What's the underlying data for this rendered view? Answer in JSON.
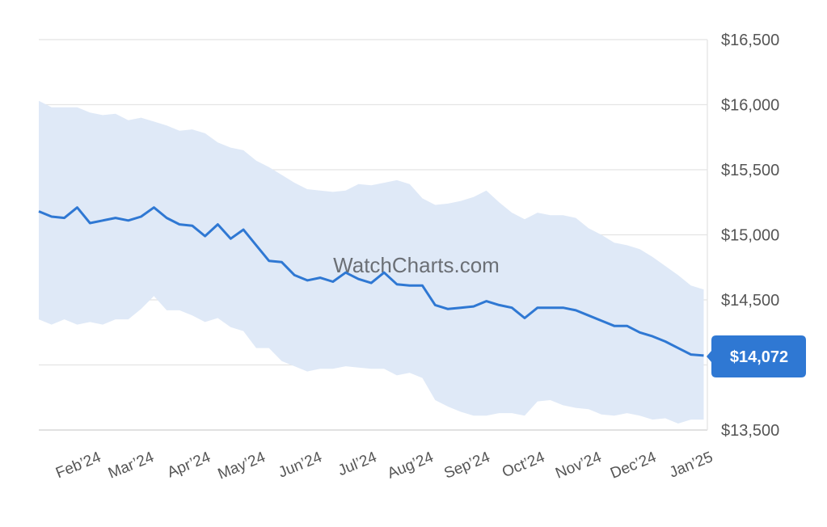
{
  "chart_data": {
    "type": "line",
    "title": "",
    "xlabel": "",
    "ylabel": "",
    "watermark": "WatchCharts.com",
    "current_value_label": "$14,072",
    "current_value": 14072,
    "ylim": [
      13500,
      16500
    ],
    "xlim": [
      "2024-01-01",
      "2025-01-01"
    ],
    "grid": "horizontal",
    "y_ticks": [
      13500,
      14000,
      14500,
      15000,
      15500,
      16000,
      16500
    ],
    "y_tick_labels": [
      "$13,500",
      "",
      "$14,500",
      "$15,000",
      "$15,500",
      "$16,000",
      "$16,500"
    ],
    "x_ticks": [
      "2024-02-01",
      "2024-03-01",
      "2024-04-01",
      "2024-05-01",
      "2024-06-01",
      "2024-07-01",
      "2024-08-01",
      "2024-09-01",
      "2024-10-01",
      "2024-11-01",
      "2024-12-01",
      "2025-01-01"
    ],
    "x_tick_labels": [
      "Feb’24",
      "Mar’24",
      "Apr’24",
      "May’24",
      "Jun’24",
      "Jul’24",
      "Aug’24",
      "Sep’24",
      "Oct’24",
      "Nov’24",
      "Dec’24",
      "Jan’25"
    ],
    "colors": {
      "line": "#2f78d3",
      "band": "#dfe9f7",
      "badge": "#2f78d3",
      "grid": "#e4e4e4"
    },
    "x": [
      "2024-01-01",
      "2024-01-08",
      "2024-01-15",
      "2024-01-22",
      "2024-01-29",
      "2024-02-05",
      "2024-02-12",
      "2024-02-19",
      "2024-02-26",
      "2024-03-04",
      "2024-03-11",
      "2024-03-18",
      "2024-03-25",
      "2024-04-01",
      "2024-04-08",
      "2024-04-15",
      "2024-04-22",
      "2024-04-29",
      "2024-05-06",
      "2024-05-13",
      "2024-05-20",
      "2024-05-27",
      "2024-06-03",
      "2024-06-10",
      "2024-06-17",
      "2024-06-24",
      "2024-07-01",
      "2024-07-08",
      "2024-07-15",
      "2024-07-22",
      "2024-07-29",
      "2024-08-05",
      "2024-08-12",
      "2024-08-19",
      "2024-08-26",
      "2024-09-02",
      "2024-09-09",
      "2024-09-16",
      "2024-09-23",
      "2024-09-30",
      "2024-10-07",
      "2024-10-14",
      "2024-10-21",
      "2024-10-28",
      "2024-11-04",
      "2024-11-11",
      "2024-11-18",
      "2024-11-25",
      "2024-12-02",
      "2024-12-09",
      "2024-12-16",
      "2024-12-23",
      "2024-12-30"
    ],
    "series": [
      {
        "role": "price",
        "values": [
          15180,
          15140,
          15130,
          15210,
          15090,
          15110,
          15130,
          15110,
          15140,
          15210,
          15130,
          15080,
          15070,
          14990,
          15080,
          14970,
          15040,
          14920,
          14800,
          14790,
          14690,
          14650,
          14670,
          14640,
          14710,
          14660,
          14630,
          14710,
          14620,
          14610,
          14610,
          14460,
          14430,
          14440,
          14450,
          14490,
          14460,
          14440,
          14360,
          14440,
          14440,
          14440,
          14420,
          14380,
          14340,
          14300,
          14300,
          14250,
          14220,
          14180,
          14130,
          14080,
          14072
        ]
      },
      {
        "role": "band-upper",
        "values": [
          16030,
          15980,
          15980,
          15980,
          15940,
          15920,
          15930,
          15880,
          15900,
          15870,
          15840,
          15800,
          15810,
          15780,
          15710,
          15670,
          15650,
          15570,
          15520,
          15460,
          15400,
          15350,
          15340,
          15330,
          15340,
          15390,
          15380,
          15400,
          15420,
          15390,
          15280,
          15230,
          15240,
          15260,
          15290,
          15340,
          15250,
          15170,
          15120,
          15170,
          15150,
          15150,
          15130,
          15050,
          15000,
          14940,
          14920,
          14890,
          14830,
          14760,
          14690,
          14610,
          14580
        ]
      },
      {
        "role": "band-lower",
        "values": [
          14350,
          14310,
          14350,
          14310,
          14330,
          14310,
          14350,
          14350,
          14430,
          14530,
          14420,
          14420,
          14380,
          14330,
          14360,
          14290,
          14260,
          14130,
          14130,
          14030,
          13990,
          13950,
          13970,
          13970,
          13990,
          13980,
          13970,
          13970,
          13920,
          13940,
          13900,
          13730,
          13680,
          13640,
          13610,
          13610,
          13630,
          13630,
          13610,
          13720,
          13730,
          13690,
          13670,
          13660,
          13620,
          13610,
          13630,
          13610,
          13580,
          13590,
          13550,
          13580,
          13580
        ]
      }
    ]
  }
}
